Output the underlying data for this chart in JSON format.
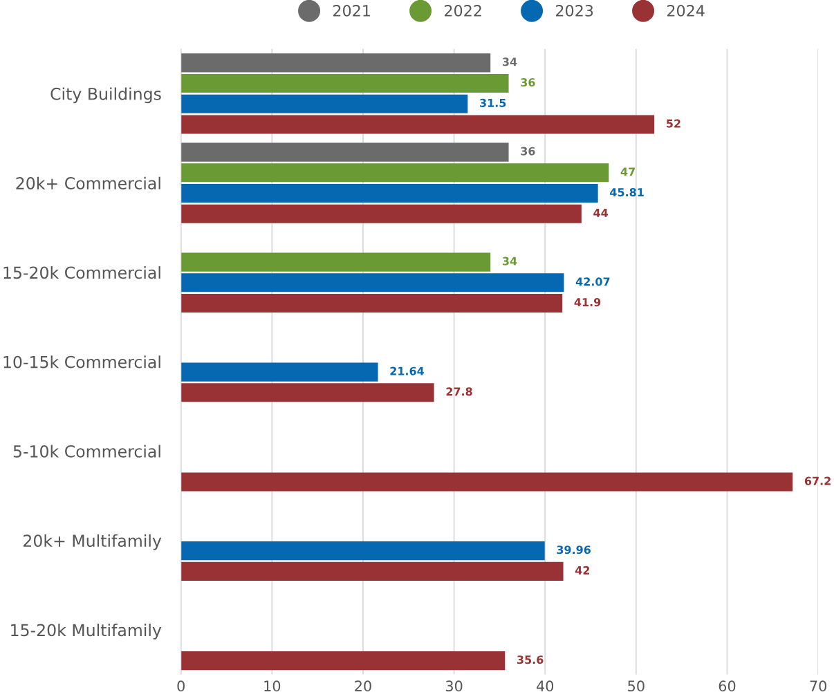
{
  "chart_data": {
    "type": "bar",
    "orientation": "horizontal",
    "categories": [
      "City Buildings",
      "20k+ Commercial",
      "15-20k Commercial",
      "10-15k Commercial",
      "5-10k Commercial",
      "20k+ Multifamily",
      "15-20k Multifamily"
    ],
    "series": [
      {
        "name": "2021",
        "color": "#6b6b6b",
        "values": [
          34,
          36,
          null,
          null,
          null,
          null,
          null
        ]
      },
      {
        "name": "2022",
        "color": "#6a9a33",
        "values": [
          36,
          47,
          34,
          null,
          null,
          null,
          null
        ]
      },
      {
        "name": "2023",
        "color": "#0568b0",
        "values": [
          31.5,
          45.81,
          42.07,
          21.64,
          null,
          39.96,
          null
        ]
      },
      {
        "name": "2024",
        "color": "#983234",
        "values": [
          52,
          44,
          41.9,
          27.8,
          67.2,
          42,
          35.6
        ]
      }
    ],
    "xlim": [
      0,
      70
    ],
    "xticks": [
      0,
      10,
      20,
      30,
      40,
      50,
      60,
      70
    ],
    "grid": "x",
    "legend": "top",
    "marker": "circle",
    "data_labels": true
  }
}
